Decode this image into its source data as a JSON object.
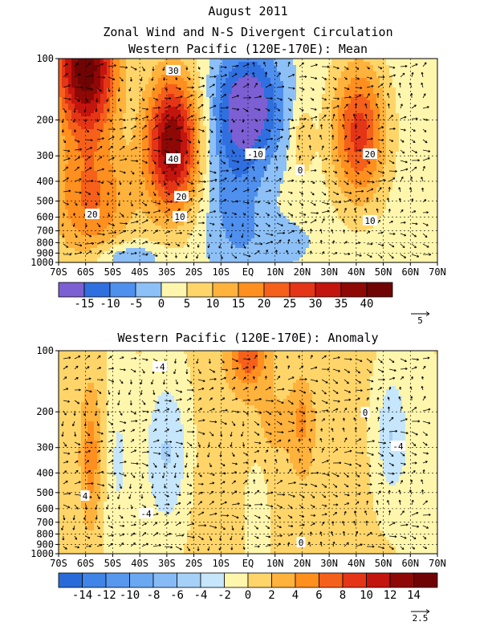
{
  "titles": {
    "month": "August 2011",
    "main": "Zonal Wind and N-S Divergent Circulation",
    "panel1": "Western Pacific (120E-170E): Mean",
    "panel2": "Western Pacific (120E-170E): Anomaly"
  },
  "chart_data": [
    {
      "type": "heatmap",
      "title": "Western Pacific (120E-170E): Mean",
      "x_ticks": [
        "70S",
        "60S",
        "50S",
        "40S",
        "30S",
        "20S",
        "10S",
        "EQ",
        "10N",
        "20N",
        "30N",
        "40N",
        "50N",
        "60N",
        "70N"
      ],
      "y_ticks": [
        "100",
        "200",
        "300",
        "400",
        "500",
        "600",
        "700",
        "800",
        "900",
        "1000"
      ],
      "xlim": [
        -70,
        70
      ],
      "ylim": [
        1000,
        100
      ],
      "y_scale": "log",
      "levels": [
        -20,
        -15,
        -10,
        -5,
        0,
        5,
        10,
        15,
        20,
        25,
        30,
        35,
        40,
        45
      ],
      "colorbar_labels": [
        "-15",
        "-10",
        "-5",
        "0",
        "5",
        "10",
        "15",
        "20",
        "25",
        "30",
        "35",
        "40"
      ],
      "colors": [
        "#7c5fd2",
        "#2f6fe0",
        "#4f90ee",
        "#8cc0f6",
        "#fff6ad",
        "#ffd56a",
        "#ffb23c",
        "#ff8f1e",
        "#f5601a",
        "#e43516",
        "#c4140e",
        "#8e0906",
        "#700404"
      ],
      "contour_labels": [
        "30",
        "40",
        "20",
        "10",
        "20",
        "-10",
        "0",
        "20",
        "10"
      ],
      "vector_ref": "5",
      "grid": true,
      "features": [
        {
          "lat": -60,
          "p": 110,
          "value": 42,
          "sx": 8,
          "sy": 0.55
        },
        {
          "lat": -58,
          "p": 500,
          "value": 18,
          "sx": 11,
          "sy": 0.5
        },
        {
          "lat": -28,
          "p": 260,
          "value": 38,
          "sx": 7,
          "sy": 0.55
        },
        {
          "lat": 41,
          "p": 230,
          "value": 25,
          "sx": 7,
          "sy": 0.55
        },
        {
          "lat": 0,
          "p": 170,
          "value": -22,
          "sx": 9,
          "sy": 0.45
        },
        {
          "lat": -5,
          "p": 500,
          "value": -9,
          "sx": 8,
          "sy": 0.6
        },
        {
          "lat": 20,
          "p": 250,
          "value": 7,
          "sx": 3,
          "sy": 0.3
        },
        {
          "lat": -45,
          "p": 950,
          "value": -10,
          "sx": 8,
          "sy": 0.12
        },
        {
          "lat": 12,
          "p": 800,
          "value": -4,
          "sx": 9,
          "sy": 0.2
        }
      ],
      "base": 2
    },
    {
      "type": "heatmap",
      "title": "Western Pacific (120E-170E): Anomaly",
      "x_ticks": [
        "70S",
        "60S",
        "50S",
        "40S",
        "30S",
        "20S",
        "10S",
        "EQ",
        "10N",
        "20N",
        "30N",
        "40N",
        "50N",
        "60N",
        "70N"
      ],
      "y_ticks": [
        "100",
        "200",
        "300",
        "400",
        "500",
        "600",
        "700",
        "800",
        "900",
        "1000"
      ],
      "xlim": [
        -70,
        70
      ],
      "ylim": [
        1000,
        100
      ],
      "y_scale": "log",
      "levels": [
        -16,
        -14,
        -12,
        -10,
        -8,
        -6,
        -4,
        -2,
        0,
        2,
        4,
        6,
        8,
        10,
        12,
        14,
        16
      ],
      "colorbar_labels": [
        "-14",
        "-12",
        "-10",
        "-8",
        "-6",
        "-4",
        "-2",
        "0",
        "2",
        "4",
        "6",
        "8",
        "10",
        "12",
        "14"
      ],
      "colors": [
        "#2a6ad8",
        "#3f84e6",
        "#5797ee",
        "#6aa8f2",
        "#86bbf5",
        "#a5d0f8",
        "#c6e6fb",
        "#fff6ad",
        "#ffd56a",
        "#ffb23c",
        "#ff8f1e",
        "#f5601a",
        "#e43516",
        "#c4140e",
        "#8e0906",
        "#700404"
      ],
      "contour_labels": [
        "-4",
        "4",
        "-4",
        "0",
        "-4",
        "0"
      ],
      "vector_ref": "2.5",
      "grid": true,
      "features": [
        {
          "lat": -58,
          "p": 330,
          "value": 4.8,
          "sx": 3,
          "sy": 0.6
        },
        {
          "lat": -48,
          "p": 350,
          "value": -2.5,
          "sx": 4,
          "sy": 0.8
        },
        {
          "lat": -30,
          "p": 320,
          "value": -4.5,
          "sx": 6,
          "sy": 0.6
        },
        {
          "lat": -12,
          "p": 400,
          "value": 1.2,
          "sx": 7,
          "sy": 0.9
        },
        {
          "lat": 0,
          "p": 105,
          "value": 7,
          "sx": 5,
          "sy": 0.25
        },
        {
          "lat": 8,
          "p": 230,
          "value": 2.2,
          "sx": 8,
          "sy": 0.4
        },
        {
          "lat": 3,
          "p": 600,
          "value": -2,
          "sx": 3,
          "sy": 0.6
        },
        {
          "lat": 20,
          "p": 220,
          "value": 3.5,
          "sx": 3,
          "sy": 0.35
        },
        {
          "lat": 22,
          "p": 700,
          "value": 1.5,
          "sx": 6,
          "sy": 0.5
        },
        {
          "lat": 33,
          "p": 300,
          "value": 1.3,
          "sx": 5,
          "sy": 0.8
        },
        {
          "lat": 53,
          "p": 260,
          "value": -4.2,
          "sx": 4,
          "sy": 0.5
        },
        {
          "lat": 65,
          "p": 400,
          "value": -1.2,
          "sx": 6,
          "sy": 0.9
        }
      ],
      "base": 0.3
    }
  ]
}
